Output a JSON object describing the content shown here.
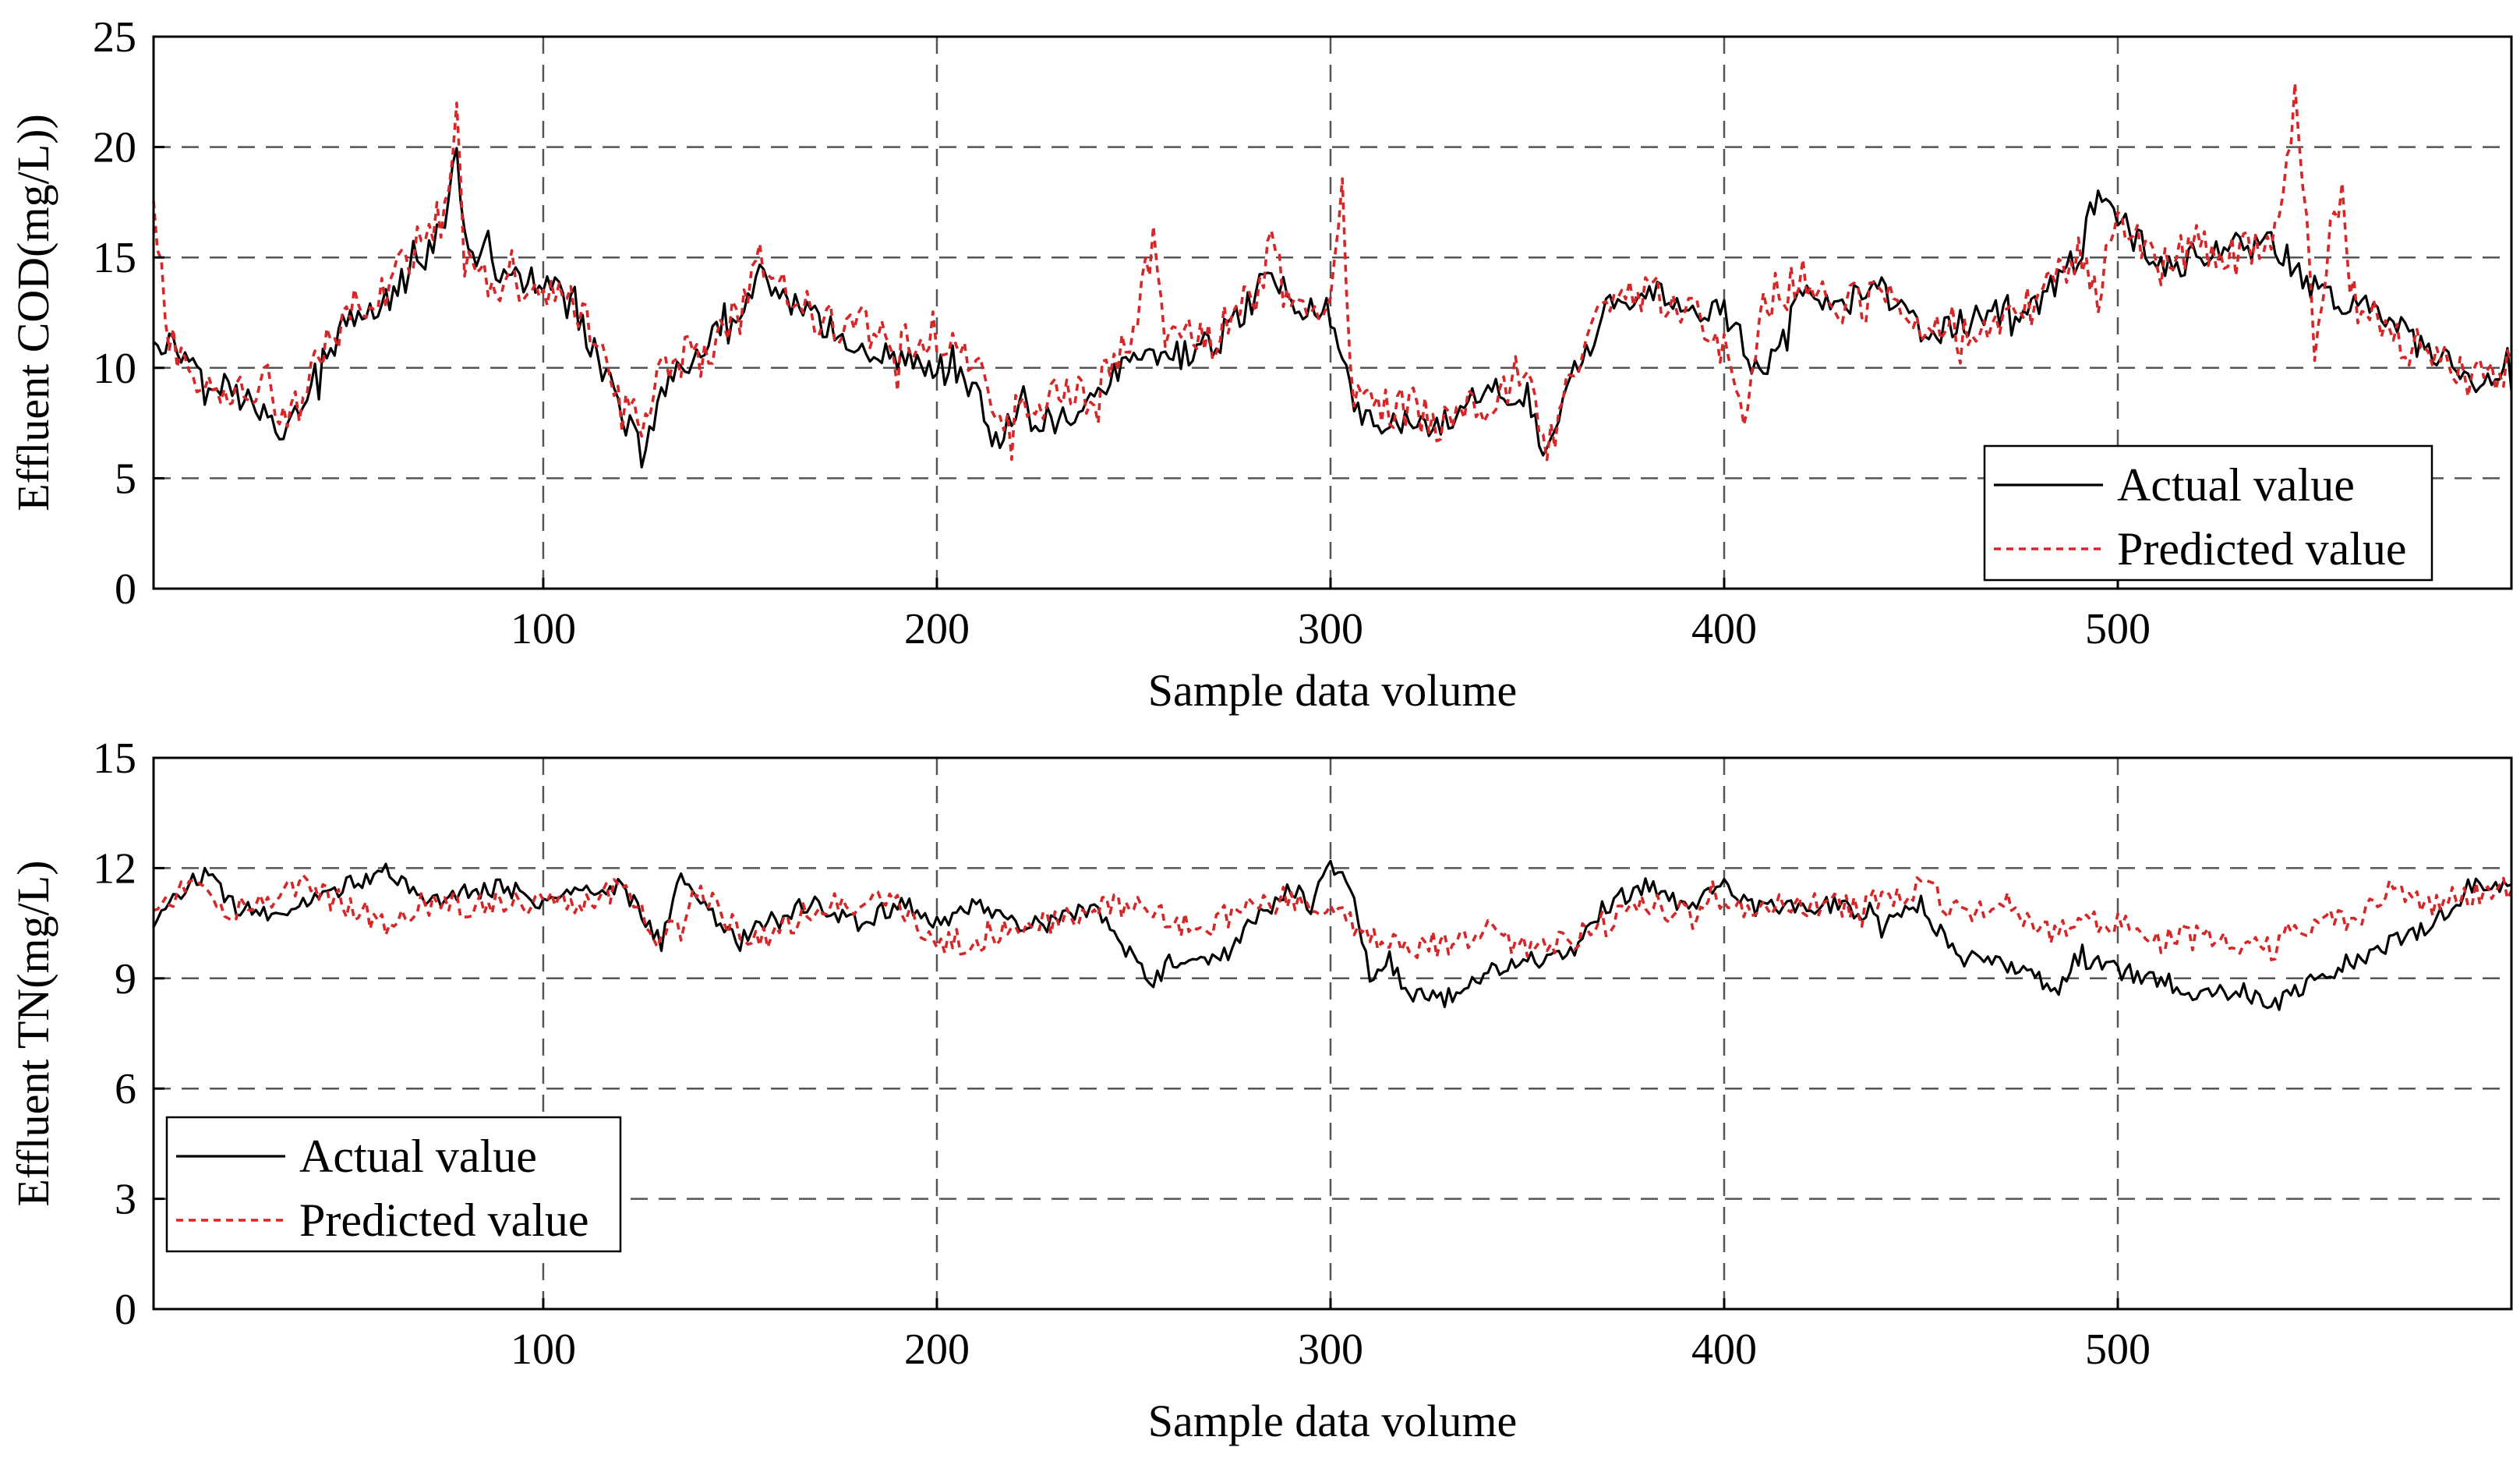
{
  "chart_data": [
    {
      "type": "line",
      "name": "cod",
      "title": "",
      "xlabel": "Sample data volume",
      "ylabel": "Effluent COD(mg/L))",
      "xlim": [
        1,
        600
      ],
      "ylim": [
        0,
        25
      ],
      "xticks": [
        100,
        200,
        300,
        400,
        500
      ],
      "yticks": [
        0,
        5,
        10,
        15,
        20,
        25
      ],
      "grid": true,
      "legend_position": "bottom-right",
      "series": [
        {
          "name": "Actual value",
          "color": "#000000",
          "style": "solid",
          "x": [
            1,
            10,
            20,
            30,
            35,
            40,
            50,
            60,
            70,
            75,
            78,
            80,
            90,
            100,
            110,
            120,
            125,
            130,
            140,
            150,
            155,
            160,
            170,
            180,
            190,
            200,
            210,
            215,
            220,
            230,
            240,
            250,
            260,
            270,
            280,
            285,
            290,
            300,
            305,
            310,
            320,
            330,
            340,
            350,
            355,
            360,
            370,
            380,
            390,
            400,
            410,
            420,
            430,
            440,
            450,
            460,
            470,
            480,
            490,
            495,
            500,
            510,
            520,
            530,
            540,
            550,
            560,
            570,
            580,
            590,
            600
          ],
          "values": [
            11.5,
            10.5,
            9,
            8,
            7,
            9,
            12,
            13,
            15,
            17,
            19.5,
            16,
            14,
            14,
            12,
            8,
            6,
            9,
            11,
            12,
            14,
            13.5,
            12,
            11,
            10.5,
            10,
            9,
            6,
            8,
            7.5,
            8.5,
            10.5,
            10.5,
            11,
            13,
            14.5,
            13,
            12.5,
            9,
            7.5,
            7.5,
            7.5,
            9.5,
            8,
            6,
            9,
            12.5,
            13.5,
            13,
            12.5,
            9.5,
            13.5,
            13,
            13.5,
            11.5,
            12,
            12.5,
            13,
            15,
            18,
            17,
            14.5,
            15,
            15.5,
            15.5,
            13.5,
            13,
            12,
            10.5,
            9.5,
            9.5
          ]
        },
        {
          "name": "Predicted value",
          "color": "#d62728",
          "style": "dashed",
          "x": [
            1,
            5,
            10,
            20,
            30,
            35,
            40,
            50,
            60,
            70,
            75,
            78,
            80,
            90,
            100,
            110,
            120,
            125,
            130,
            140,
            150,
            155,
            160,
            170,
            180,
            190,
            200,
            210,
            215,
            220,
            230,
            240,
            250,
            255,
            260,
            270,
            280,
            285,
            290,
            300,
            303,
            305,
            310,
            320,
            330,
            340,
            350,
            355,
            360,
            370,
            380,
            390,
            400,
            405,
            410,
            420,
            430,
            440,
            450,
            460,
            470,
            480,
            490,
            495,
            500,
            510,
            520,
            530,
            540,
            545,
            548,
            550,
            555,
            560,
            570,
            580,
            590,
            600
          ],
          "values": [
            18,
            11,
            10,
            8.5,
            9.5,
            7,
            9.5,
            12.5,
            13.5,
            16,
            17,
            21,
            15,
            13.5,
            13.5,
            12.5,
            8,
            7,
            10.5,
            10.5,
            12.5,
            15,
            14,
            12,
            12,
            11,
            11,
            10.5,
            7,
            8.5,
            8.5,
            9,
            11.5,
            16,
            11,
            11.5,
            13,
            15.5,
            12.5,
            12.5,
            18,
            10,
            8.5,
            8,
            7.5,
            8.5,
            10,
            6,
            9,
            13.5,
            13.5,
            13,
            11,
            7,
            13,
            14,
            12.5,
            14,
            12,
            12,
            12,
            13,
            15,
            13,
            17,
            14.5,
            15.5,
            15,
            15.5,
            22,
            16,
            10,
            18,
            13,
            11.5,
            10.5,
            9.5,
            10
          ]
        }
      ]
    },
    {
      "type": "line",
      "name": "tn",
      "title": "",
      "xlabel": "Sample data volume",
      "ylabel": "Effluent TN(mg/L)",
      "xlim": [
        1,
        600
      ],
      "ylim": [
        0,
        15
      ],
      "xticks": [
        100,
        200,
        300,
        400,
        500
      ],
      "yticks": [
        0,
        3,
        6,
        9,
        12,
        15
      ],
      "grid": true,
      "legend_position": "bottom-left",
      "series": [
        {
          "name": "Actual value",
          "color": "#000000",
          "style": "solid",
          "x": [
            1,
            5,
            10,
            15,
            20,
            30,
            40,
            50,
            60,
            70,
            80,
            90,
            100,
            110,
            120,
            130,
            135,
            140,
            150,
            160,
            170,
            180,
            190,
            200,
            210,
            220,
            230,
            240,
            250,
            255,
            260,
            270,
            280,
            290,
            295,
            300,
            305,
            310,
            315,
            320,
            330,
            340,
            350,
            360,
            370,
            380,
            390,
            400,
            410,
            420,
            430,
            440,
            450,
            460,
            470,
            480,
            485,
            490,
            500,
            510,
            520,
            530,
            540,
            550,
            560,
            570,
            580,
            590,
            600
          ],
          "values": [
            10.5,
            11,
            11.5,
            12,
            11,
            10.8,
            11,
            11.5,
            12,
            11,
            11.3,
            11.5,
            11,
            11.5,
            11.5,
            10,
            11.8,
            11,
            10,
            10.8,
            11,
            10.5,
            11,
            10.5,
            11,
            10.5,
            10.5,
            11,
            9.5,
            9,
            9.5,
            9.5,
            10.5,
            11.5,
            11,
            12,
            11.5,
            9,
            9.5,
            8.5,
            8.5,
            9,
            9.5,
            9.5,
            11,
            11.5,
            11,
            11.5,
            11,
            11,
            11,
            10.5,
            11,
            9.5,
            9.5,
            9,
            8.7,
            9.5,
            9.2,
            9,
            8.5,
            8.7,
            8.3,
            9,
            9.5,
            10,
            10.5,
            11.5,
            11.5
          ]
        },
        {
          "name": "Predicted value",
          "color": "#d62728",
          "style": "dashed",
          "x": [
            1,
            10,
            20,
            30,
            40,
            50,
            60,
            70,
            80,
            90,
            100,
            110,
            120,
            130,
            140,
            150,
            160,
            170,
            180,
            190,
            200,
            210,
            220,
            230,
            240,
            250,
            260,
            270,
            280,
            290,
            300,
            310,
            320,
            330,
            340,
            350,
            360,
            370,
            380,
            390,
            400,
            410,
            420,
            430,
            440,
            450,
            460,
            470,
            480,
            490,
            500,
            510,
            520,
            530,
            540,
            550,
            560,
            570,
            580,
            590,
            600
          ],
          "values": [
            11,
            11.5,
            10.8,
            11.2,
            11.5,
            11,
            10.5,
            11,
            11,
            11,
            11,
            11,
            11.5,
            10,
            11.5,
            10.2,
            10.2,
            11,
            11,
            11,
            10,
            10,
            10.5,
            10.5,
            11,
            11,
            10.5,
            10.5,
            11,
            11,
            11,
            10,
            9.8,
            10,
            10.3,
            9.8,
            10,
            10.5,
            11,
            10.8,
            11,
            11,
            11,
            11,
            11,
            11.5,
            10.8,
            11,
            10.2,
            10.5,
            10.5,
            10,
            10.3,
            10,
            9.8,
            10.5,
            10.5,
            11.5,
            11,
            11.3,
            11.5
          ]
        }
      ]
    }
  ]
}
